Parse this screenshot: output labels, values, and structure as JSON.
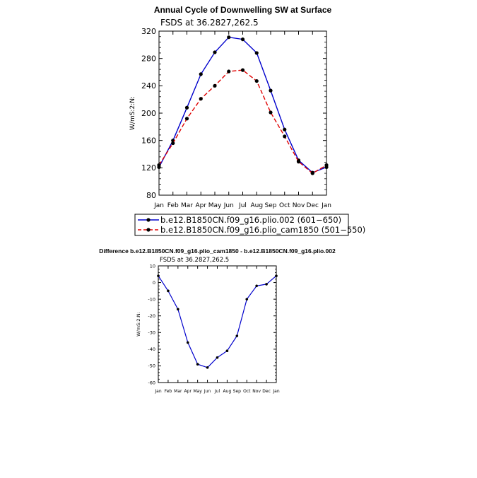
{
  "chart_data": [
    {
      "type": "line",
      "title": "Annual Cycle of Downwelling SW at Surface",
      "subtitle": "FSDS at 36.2827,262.5",
      "xlabel": "",
      "ylabel": "W/mS:2:N:",
      "categories": [
        "Jan",
        "Feb",
        "Mar",
        "Apr",
        "May",
        "Jun",
        "Jul",
        "Aug",
        "Sep",
        "Oct",
        "Nov",
        "Dec",
        "Jan"
      ],
      "yticks": [
        80,
        120,
        160,
        200,
        240,
        280,
        320
      ],
      "ylim": [
        80,
        320
      ],
      "grid": false,
      "legend": "bottom",
      "series": [
        {
          "name": "b.e12.B1850CN.f09_g16.plio.002 (601−650)",
          "color": "#0000cc",
          "dash": "solid",
          "values": [
            121,
            160,
            208,
            257,
            289,
            311,
            308,
            288,
            233,
            176,
            131,
            113,
            121
          ]
        },
        {
          "name": "b.e12.B1850CN.f09_g16.plio_cam1850 (501−550)",
          "color": "#e00000",
          "dash": "dashed",
          "values": [
            124,
            156,
            192,
            221,
            240,
            261,
            263,
            247,
            201,
            166,
            129,
            112,
            124
          ]
        }
      ]
    },
    {
      "type": "line",
      "title": "Difference b.e12.B1850CN.f09_g16.plio_cam1850 - b.e12.B1850CN.f09_g16.plio.002",
      "subtitle": "FSDS at 36.2827,262.5",
      "xlabel": "",
      "ylabel": "W/mS:2:N:",
      "categories": [
        "Jan",
        "Feb",
        "Mar",
        "Apr",
        "May",
        "Jun",
        "Jul",
        "Aug",
        "Sep",
        "Oct",
        "Nov",
        "Dec",
        "Jan"
      ],
      "yticks": [
        -60,
        -50,
        -40,
        -30,
        -20,
        -10,
        0,
        10
      ],
      "ylim": [
        -60,
        10
      ],
      "grid": false,
      "series": [
        {
          "color": "#0000cc",
          "dash": "solid",
          "values": [
            4,
            -5,
            -16,
            -36,
            -49,
            -51,
            -45,
            -41,
            -32,
            -10,
            -2,
            -1,
            4
          ]
        }
      ]
    }
  ]
}
